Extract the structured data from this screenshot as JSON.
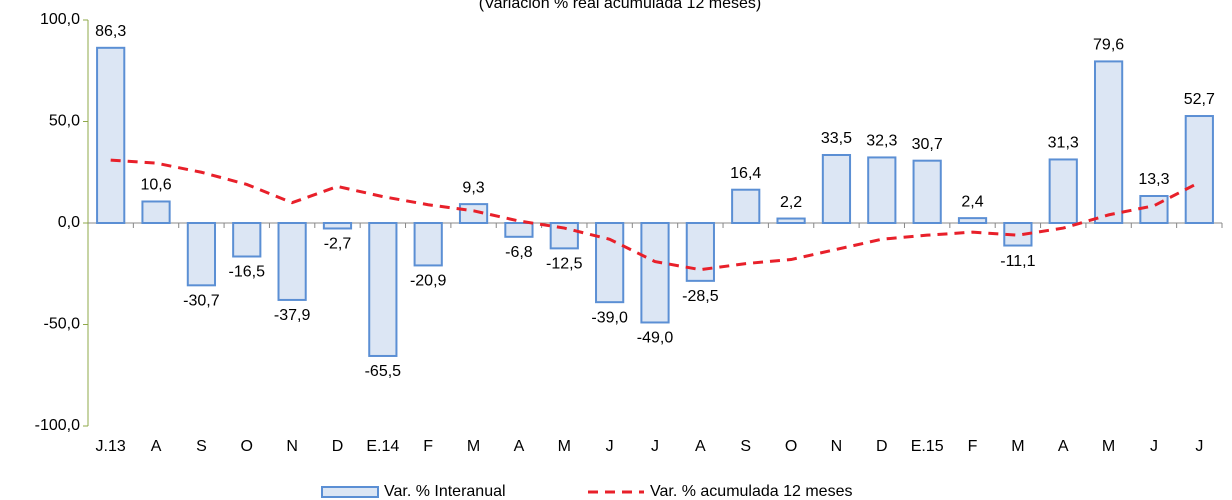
{
  "chart_data": {
    "type": "bar",
    "subtitle": "(Variación % real acumulada 12 meses)",
    "categories": [
      "J.13",
      "A",
      "S",
      "O",
      "N",
      "D",
      "E.14",
      "F",
      "M",
      "A",
      "M",
      "J",
      "J",
      "A",
      "S",
      "O",
      "N",
      "D",
      "E.15",
      "F",
      "M",
      "A",
      "M",
      "J",
      "J"
    ],
    "series": [
      {
        "name": "Var. % Interanual",
        "type": "bar",
        "color": "#dce6f4",
        "edge": "#5b8fd4",
        "values": [
          86.3,
          10.6,
          -30.7,
          -16.5,
          -37.9,
          -2.7,
          -65.5,
          -20.9,
          9.3,
          -6.8,
          -12.5,
          -39.0,
          -49.0,
          -28.5,
          16.4,
          2.2,
          33.5,
          32.3,
          30.7,
          2.4,
          -11.1,
          31.3,
          79.6,
          13.3,
          52.7
        ],
        "value_labels": [
          "86,3",
          "10,6",
          "-30,7",
          "-16,5",
          "-37,9",
          "-2,7",
          "-65,5",
          "-20,9",
          "9,3",
          "-6,8",
          "-12,5",
          "-39,0",
          "-49,0",
          "-28,5",
          "16,4",
          "2,2",
          "33,5",
          "32,3",
          "30,7",
          "2,4",
          "-11,1",
          "31,3",
          "79,6",
          "13,3",
          "52,7"
        ]
      },
      {
        "name": "Var. % acumulada  12 meses",
        "type": "line",
        "color": "#e8202a",
        "values": [
          31,
          29.5,
          25,
          19,
          10,
          18,
          13,
          9,
          6,
          1,
          -2.5,
          -8,
          -19,
          -23,
          -20,
          -18,
          -13,
          -8,
          -6,
          -4.5,
          -6,
          -2.5,
          4,
          8.5,
          20
        ]
      }
    ],
    "ylim": [
      -100,
      100
    ],
    "yticks": [
      {
        "value": -100,
        "label": "-100,0"
      },
      {
        "value": -50,
        "label": "-50,0"
      },
      {
        "value": 0,
        "label": "0,0"
      },
      {
        "value": 50,
        "label": "50,0"
      },
      {
        "value": 100,
        "label": "100,0"
      }
    ]
  }
}
